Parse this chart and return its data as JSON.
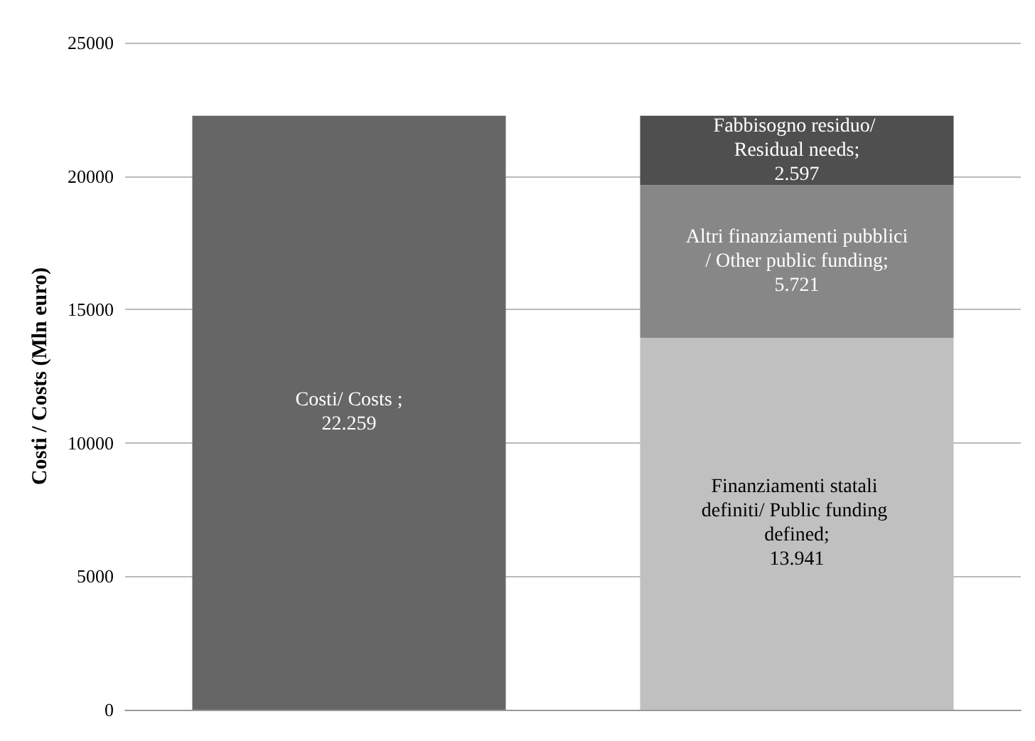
{
  "chart_data": {
    "type": "bar",
    "stacked": true,
    "ylabel": "Costi / Costs (Mln euro)",
    "categories": [
      null,
      null
    ],
    "series": [
      {
        "name": "Costi/ Costs ;",
        "color": "#666666",
        "values": [
          22259,
          null
        ],
        "value_labels": [
          "22.259",
          null
        ]
      },
      {
        "name": "Finanziamenti statali definiti/ Public funding defined;",
        "color": "#c0c0c0",
        "values": [
          null,
          13941
        ],
        "value_labels": [
          null,
          "13.941"
        ]
      },
      {
        "name": "Altri finanziamenti pubblici/ Other public funding;",
        "color": "#878787",
        "values": [
          null,
          5721
        ],
        "value_labels": [
          null,
          "5.721"
        ]
      },
      {
        "name": "Fabbisogno residuo/ Residual needs;",
        "color": "#4f4f4f",
        "values": [
          null,
          2597
        ],
        "value_labels": [
          null,
          "2.597"
        ]
      }
    ],
    "ylim": [
      0,
      25000
    ],
    "yticks": [
      0,
      5000,
      10000,
      15000,
      20000,
      25000
    ],
    "grid": "y"
  }
}
